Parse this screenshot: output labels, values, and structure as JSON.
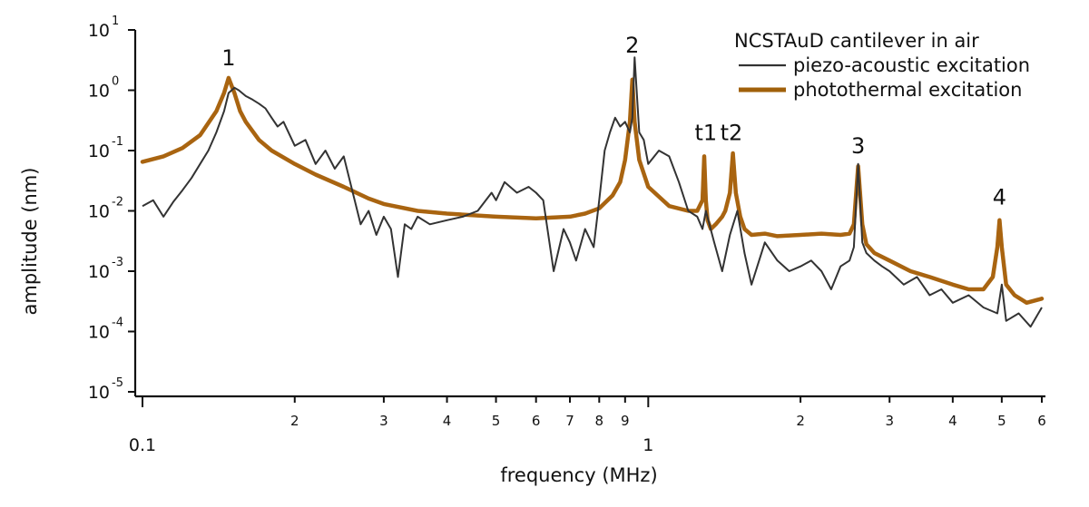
{
  "chart_data": {
    "type": "line",
    "title": "",
    "xlabel": "frequency (MHz)",
    "ylabel": "amplitude (nm)",
    "x_scale": "log",
    "y_scale": "log",
    "xlim": [
      0.1,
      6
    ],
    "ylim": [
      1e-05,
      10
    ],
    "grid": false,
    "legend": {
      "title": "NCSTAuD cantilever in air",
      "position": "top-right"
    },
    "x_ticks": [
      {
        "value": 0.1,
        "label": "0.1",
        "major": true
      },
      {
        "value": 0.2,
        "label": "2",
        "major": false
      },
      {
        "value": 0.3,
        "label": "3",
        "major": false
      },
      {
        "value": 0.4,
        "label": "4",
        "major": false
      },
      {
        "value": 0.5,
        "label": "5",
        "major": false
      },
      {
        "value": 0.6,
        "label": "6",
        "major": false
      },
      {
        "value": 0.7,
        "label": "7",
        "major": false
      },
      {
        "value": 0.8,
        "label": "8",
        "major": false
      },
      {
        "value": 0.9,
        "label": "9",
        "major": false
      },
      {
        "value": 1.0,
        "label": "1",
        "major": true
      },
      {
        "value": 2.0,
        "label": "2",
        "major": false
      },
      {
        "value": 3.0,
        "label": "3",
        "major": false
      },
      {
        "value": 4.0,
        "label": "4",
        "major": false
      },
      {
        "value": 5.0,
        "label": "5",
        "major": false
      },
      {
        "value": 6.0,
        "label": "6",
        "major": false
      }
    ],
    "y_ticks": [
      {
        "value": 10,
        "base": "10",
        "exp": "1"
      },
      {
        "value": 1,
        "base": "10",
        "exp": "0"
      },
      {
        "value": 0.1,
        "base": "10",
        "exp": "-1"
      },
      {
        "value": 0.01,
        "base": "10",
        "exp": "-2"
      },
      {
        "value": 0.001,
        "base": "10",
        "exp": "-3"
      },
      {
        "value": 0.0001,
        "base": "10",
        "exp": "-4"
      },
      {
        "value": 1e-05,
        "base": "10",
        "exp": "-5"
      }
    ],
    "annotations": [
      {
        "text": "1",
        "x": 0.148,
        "y": 2.6
      },
      {
        "text": "2",
        "x": 0.93,
        "y": 4.2
      },
      {
        "text": "t1",
        "x": 1.3,
        "y": 0.15
      },
      {
        "text": "t2",
        "x": 1.46,
        "y": 0.15
      },
      {
        "text": "3",
        "x": 2.6,
        "y": 0.09
      },
      {
        "text": "4",
        "x": 4.95,
        "y": 0.0128
      }
    ],
    "series": [
      {
        "name": "piezo-acoustic excitation",
        "color": "#333333",
        "x": [
          0.1,
          0.105,
          0.11,
          0.115,
          0.12,
          0.125,
          0.13,
          0.135,
          0.14,
          0.145,
          0.148,
          0.152,
          0.155,
          0.16,
          0.165,
          0.17,
          0.175,
          0.18,
          0.185,
          0.19,
          0.2,
          0.21,
          0.22,
          0.23,
          0.24,
          0.25,
          0.27,
          0.28,
          0.29,
          0.3,
          0.31,
          0.32,
          0.33,
          0.34,
          0.35,
          0.37,
          0.4,
          0.43,
          0.46,
          0.49,
          0.5,
          0.52,
          0.55,
          0.58,
          0.6,
          0.62,
          0.65,
          0.68,
          0.7,
          0.72,
          0.75,
          0.78,
          0.8,
          0.82,
          0.84,
          0.86,
          0.88,
          0.9,
          0.92,
          0.93,
          0.94,
          0.96,
          0.98,
          1.0,
          1.05,
          1.1,
          1.15,
          1.2,
          1.25,
          1.28,
          1.3,
          1.35,
          1.4,
          1.45,
          1.5,
          1.55,
          1.6,
          1.7,
          1.8,
          1.9,
          2.0,
          2.1,
          2.2,
          2.3,
          2.4,
          2.5,
          2.55,
          2.6,
          2.65,
          2.7,
          2.8,
          2.9,
          3.0,
          3.2,
          3.4,
          3.6,
          3.8,
          4.0,
          4.3,
          4.6,
          4.9,
          5.0,
          5.1,
          5.4,
          5.7,
          6.0
        ],
        "y": [
          0.012,
          0.015,
          0.008,
          0.014,
          0.022,
          0.035,
          0.06,
          0.1,
          0.2,
          0.45,
          0.9,
          1.1,
          1.0,
          0.8,
          0.7,
          0.6,
          0.5,
          0.35,
          0.25,
          0.3,
          0.12,
          0.15,
          0.06,
          0.1,
          0.05,
          0.08,
          0.006,
          0.01,
          0.004,
          0.008,
          0.005,
          0.0008,
          0.006,
          0.005,
          0.008,
          0.006,
          0.007,
          0.008,
          0.01,
          0.02,
          0.015,
          0.03,
          0.02,
          0.025,
          0.02,
          0.015,
          0.001,
          0.005,
          0.003,
          0.0015,
          0.005,
          0.0025,
          0.015,
          0.1,
          0.2,
          0.35,
          0.25,
          0.3,
          0.2,
          0.35,
          3.5,
          0.2,
          0.15,
          0.06,
          0.1,
          0.08,
          0.03,
          0.01,
          0.008,
          0.005,
          0.01,
          0.003,
          0.001,
          0.004,
          0.01,
          0.002,
          0.0006,
          0.003,
          0.0015,
          0.001,
          0.0012,
          0.0015,
          0.001,
          0.0005,
          0.0012,
          0.0015,
          0.0025,
          0.06,
          0.003,
          0.002,
          0.0015,
          0.0012,
          0.001,
          0.0006,
          0.0008,
          0.0004,
          0.0005,
          0.0003,
          0.0004,
          0.00025,
          0.0002,
          0.0006,
          0.00015,
          0.0002,
          0.00012,
          0.00025
        ]
      },
      {
        "name": "photothermal excitation",
        "color": "#a0600a",
        "x": [
          0.1,
          0.11,
          0.12,
          0.13,
          0.14,
          0.145,
          0.148,
          0.152,
          0.156,
          0.16,
          0.17,
          0.18,
          0.2,
          0.22,
          0.25,
          0.28,
          0.3,
          0.35,
          0.4,
          0.5,
          0.6,
          0.7,
          0.75,
          0.8,
          0.85,
          0.88,
          0.9,
          0.92,
          0.93,
          0.94,
          0.96,
          1.0,
          1.1,
          1.2,
          1.25,
          1.28,
          1.29,
          1.3,
          1.31,
          1.33,
          1.36,
          1.4,
          1.42,
          1.45,
          1.47,
          1.49,
          1.52,
          1.55,
          1.6,
          1.7,
          1.8,
          2.0,
          2.2,
          2.4,
          2.5,
          2.55,
          2.6,
          2.65,
          2.7,
          2.8,
          3.0,
          3.3,
          3.6,
          4.0,
          4.3,
          4.6,
          4.8,
          4.9,
          4.95,
          5.0,
          5.1,
          5.3,
          5.6,
          6.0
        ],
        "y": [
          0.065,
          0.08,
          0.11,
          0.18,
          0.45,
          0.9,
          1.6,
          0.9,
          0.45,
          0.3,
          0.15,
          0.1,
          0.06,
          0.04,
          0.025,
          0.016,
          0.013,
          0.01,
          0.009,
          0.008,
          0.0075,
          0.008,
          0.009,
          0.011,
          0.018,
          0.03,
          0.07,
          0.3,
          1.5,
          0.3,
          0.07,
          0.025,
          0.012,
          0.01,
          0.01,
          0.015,
          0.08,
          0.015,
          0.007,
          0.005,
          0.006,
          0.008,
          0.01,
          0.02,
          0.09,
          0.02,
          0.008,
          0.005,
          0.004,
          0.0042,
          0.0038,
          0.004,
          0.0042,
          0.004,
          0.0042,
          0.006,
          0.055,
          0.006,
          0.0028,
          0.002,
          0.0015,
          0.001,
          0.0008,
          0.0006,
          0.0005,
          0.0005,
          0.0008,
          0.0025,
          0.007,
          0.0025,
          0.0006,
          0.0004,
          0.0003,
          0.00035
        ]
      }
    ]
  }
}
